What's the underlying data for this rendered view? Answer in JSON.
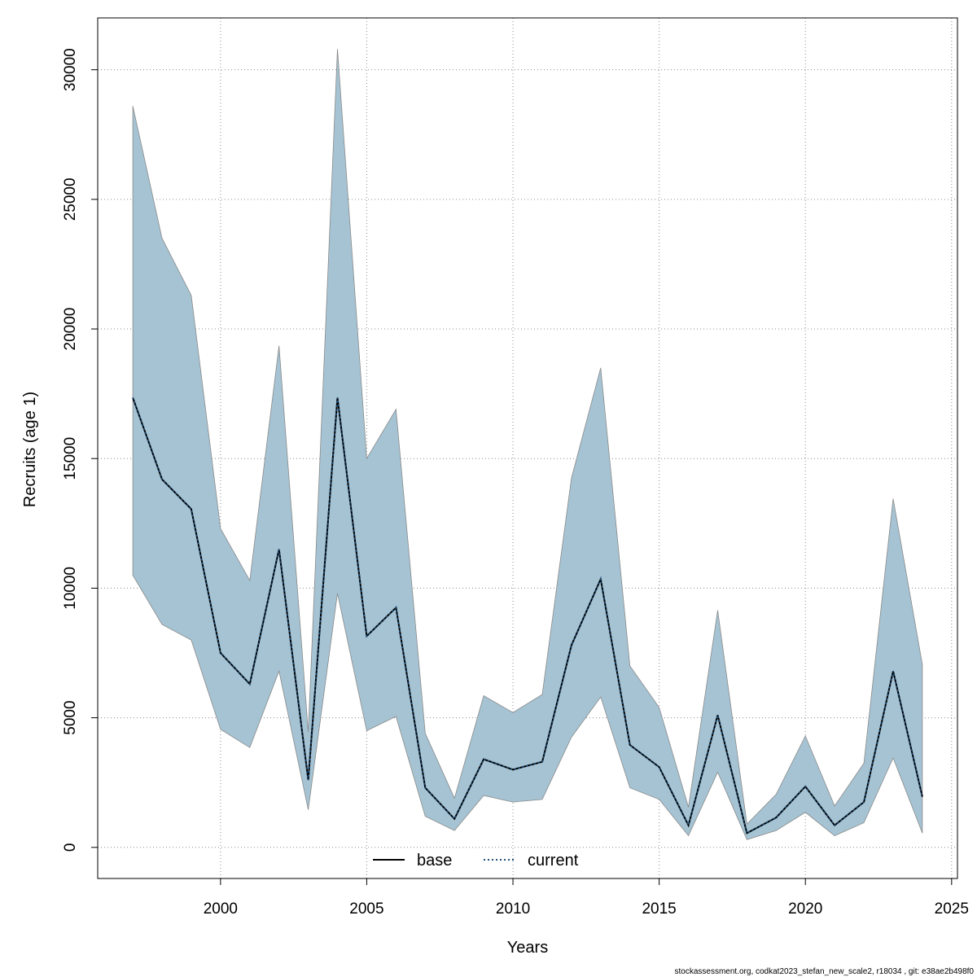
{
  "chart_data": {
    "type": "area",
    "xlabel": "Years",
    "ylabel": "Recruits (age 1)",
    "xlim": [
      1995.8,
      2025.2
    ],
    "ylim": [
      -1200,
      32000
    ],
    "x_ticks": [
      2000,
      2005,
      2010,
      2015,
      2020,
      2025
    ],
    "y_ticks": [
      0,
      5000,
      10000,
      15000,
      20000,
      25000,
      30000
    ],
    "grid": true,
    "legend_position": "bottom-center",
    "x": [
      1997,
      1998,
      1999,
      2000,
      2001,
      2002,
      2003,
      2004,
      2005,
      2006,
      2007,
      2008,
      2009,
      2010,
      2011,
      2012,
      2013,
      2014,
      2015,
      2016,
      2017,
      2018,
      2019,
      2020,
      2021,
      2022,
      2023,
      2024
    ],
    "band": {
      "lower": [
        10500,
        8600,
        8000,
        4550,
        3850,
        6800,
        1450,
        9800,
        4500,
        5050,
        1200,
        650,
        2000,
        1750,
        1850,
        4250,
        5800,
        2300,
        1850,
        450,
        2900,
        300,
        650,
        1350,
        450,
        950,
        3450,
        550
      ],
      "upper": [
        28600,
        23500,
        21300,
        12300,
        10300,
        19350,
        4450,
        30800,
        15000,
        16900,
        4400,
        1900,
        5850,
        5200,
        5900,
        14250,
        18500,
        7000,
        5400,
        1550,
        9150,
        900,
        2050,
        4300,
        1600,
        3250,
        13450,
        7050
      ],
      "color": "#a5c3d3",
      "edge_color": "#8a8a8a"
    },
    "series": [
      {
        "name": "base",
        "line_style": "solid",
        "color": "#000000",
        "values": [
          17350,
          14200,
          13050,
          7500,
          6300,
          11500,
          2600,
          17350,
          8150,
          9250,
          2300,
          1100,
          3400,
          3000,
          3300,
          7800,
          10350,
          3950,
          3100,
          850,
          5100,
          550,
          1150,
          2350,
          850,
          1750,
          6800,
          1950
        ]
      },
      {
        "name": "current",
        "line_style": "dotted",
        "color": "#1f4e79",
        "values": [
          17350,
          14200,
          13050,
          7500,
          6300,
          11500,
          2600,
          17350,
          8150,
          9250,
          2300,
          1100,
          3400,
          3000,
          3300,
          7800,
          10350,
          3950,
          3100,
          850,
          5100,
          550,
          1150,
          2350,
          850,
          1750,
          6800,
          1950
        ]
      }
    ]
  },
  "footer": {
    "note": "stockassessment.org, codkat2023_stefan_new_scale2, r18034 , git: e38ae2b498f0"
  }
}
